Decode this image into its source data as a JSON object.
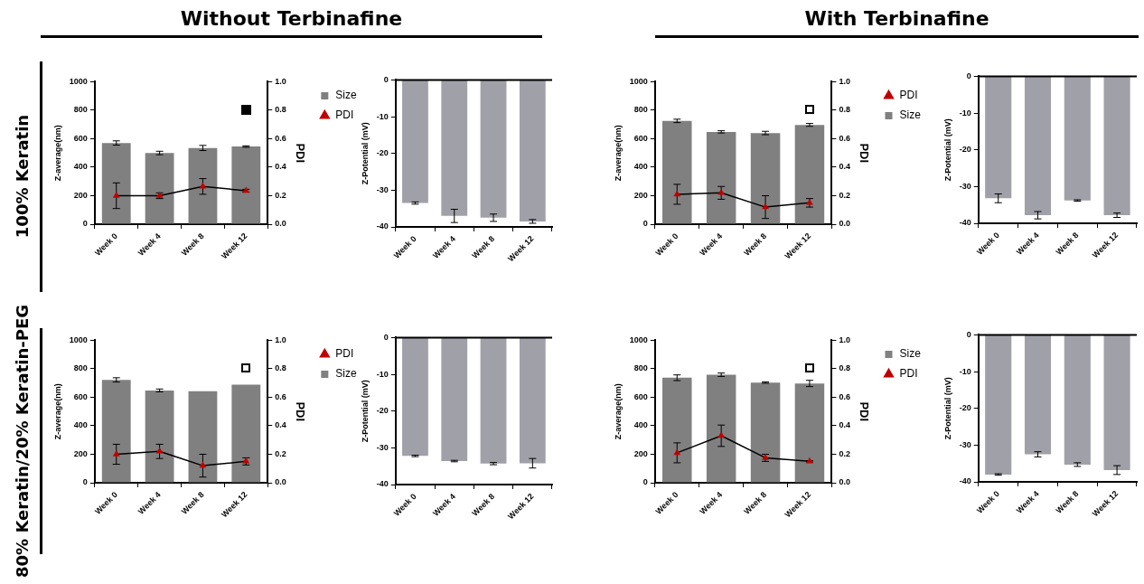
{
  "chart_data": [
    {
      "type": "other",
      "annotations": [
        "Without Terbinafine",
        "With Terbinafine",
        "100% Keratin",
        "80% Keratin/20% Keratin-PEG"
      ]
    },
    {
      "type": "bar",
      "categories": [
        "Week 0",
        "Week 4",
        "Week 8",
        "Week 12"
      ],
      "ylabel": "Z-average(nm)",
      "y2label": "PDI",
      "ylim": [
        0,
        1000
      ],
      "yticks": [
        0,
        200,
        400,
        600,
        800,
        1000
      ],
      "y2lim": [
        0,
        1
      ],
      "y2ticks": [
        {
          "value": 0,
          "label": "0.0"
        },
        {
          "value": 0.2,
          "label": "0.2"
        },
        {
          "value": 0.4,
          "label": "0.4"
        },
        {
          "value": 0.6,
          "label": "0.6"
        },
        {
          "value": 0.8,
          "label": "0.8"
        },
        {
          "value": 1,
          "label": "1.0"
        }
      ],
      "grid": false,
      "legend": "right",
      "marker": "triangle",
      "series": [
        {
          "name": "Size",
          "type": "bar",
          "color": "#808080",
          "values": [
            570,
            500,
            535,
            545
          ],
          "errors": [
            15,
            12,
            18,
            5
          ]
        },
        {
          "name": "PDI",
          "type": "line",
          "axis": "y2",
          "color": "#c00000",
          "values": [
            0.2,
            0.2,
            0.265,
            0.235
          ],
          "errors": [
            0.09,
            0.02,
            0.055,
            0.01
          ]
        }
      ]
    },
    {
      "type": "bar",
      "categories": [
        "Week 0",
        "Week 4",
        "Week 8",
        "Week 12"
      ],
      "ylabel": "Z-Potential (mV)",
      "ylim": [
        -40,
        0
      ],
      "yticks": [
        -40,
        -30,
        -20,
        -10,
        0
      ],
      "grid": false,
      "color": "#a0a0a8",
      "values": [
        -33.5,
        -37,
        -37.5,
        -38.5
      ],
      "errors": [
        0.3,
        1.8,
        1,
        0.5
      ]
    },
    {
      "type": "bar",
      "categories": [
        "Week 0",
        "Week 4",
        "Week 8",
        "Week 12"
      ],
      "ylabel": "Z-average(nm)",
      "y2label": "PDI",
      "ylim": [
        0,
        1000
      ],
      "yticks": [
        0,
        200,
        400,
        600,
        800,
        1000
      ],
      "y2lim": [
        0,
        1
      ],
      "y2ticks": [
        {
          "value": 0,
          "label": "0.0"
        },
        {
          "value": 0.2,
          "label": "0.2"
        },
        {
          "value": 0.4,
          "label": "0.4"
        },
        {
          "value": 0.6,
          "label": "0.6"
        },
        {
          "value": 0.8,
          "label": "0.8"
        },
        {
          "value": 1,
          "label": "1.0"
        }
      ],
      "grid": false,
      "legend": "right",
      "marker": "triangle",
      "series": [
        {
          "name": "PDI",
          "type": "line",
          "axis": "y2",
          "color": "#c00000",
          "values": [
            0.21,
            0.22,
            0.12,
            0.15
          ],
          "errors": [
            0.07,
            0.045,
            0.08,
            0.03
          ]
        },
        {
          "name": "Size",
          "type": "bar",
          "color": "#808080",
          "values": [
            725,
            648,
            640,
            697
          ],
          "errors": [
            12,
            8,
            12,
            10
          ]
        }
      ]
    },
    {
      "type": "bar",
      "categories": [
        "Week 0",
        "Week 4",
        "Week 8",
        "Week 12"
      ],
      "ylabel": "Z-Potential (mV)",
      "ylim": [
        -40,
        0
      ],
      "yticks": [
        -40,
        -30,
        -20,
        -10,
        0
      ],
      "grid": false,
      "color": "#a0a0a8",
      "values": [
        -33.2,
        -37.8,
        -33.8,
        -37.8
      ],
      "errors": [
        1.2,
        1,
        0.2,
        0.6
      ]
    },
    {
      "type": "bar",
      "categories": [
        "Week 0",
        "Week 4",
        "Week 8",
        "Week 12"
      ],
      "ylabel": "Z-average(nm)",
      "y2label": "PDI",
      "ylim": [
        0,
        1000
      ],
      "yticks": [
        0,
        200,
        400,
        600,
        800,
        1000
      ],
      "y2lim": [
        0,
        1
      ],
      "y2ticks": [
        {
          "value": 0,
          "label": "0.0"
        },
        {
          "value": 0.2,
          "label": "0.2"
        },
        {
          "value": 0.4,
          "label": "0.4"
        },
        {
          "value": 0.6,
          "label": "0.6"
        },
        {
          "value": 0.8,
          "label": "0.8"
        },
        {
          "value": 1,
          "label": "1.0"
        }
      ],
      "grid": false,
      "legend": "right",
      "marker": "triangle",
      "series": [
        {
          "name": "PDI",
          "type": "line",
          "axis": "y2",
          "color": "#c00000",
          "values": [
            0.2,
            0.22,
            0.12,
            0.15
          ],
          "errors": [
            0.07,
            0.05,
            0.08,
            0.025
          ]
        },
        {
          "name": "Size",
          "type": "bar",
          "color": "#808080",
          "values": [
            722,
            648,
            642,
            688
          ],
          "errors": [
            15,
            10,
            null,
            null
          ]
        }
      ]
    },
    {
      "type": "bar",
      "categories": [
        "Week 0",
        "Week 4",
        "Week 8",
        "Week 12"
      ],
      "ylabel": "Z-Potential (mV)",
      "ylim": [
        -40,
        0
      ],
      "yticks": [
        -40,
        -30,
        -20,
        -10,
        0
      ],
      "grid": false,
      "color": "#a0a0a8",
      "values": [
        -32.2,
        -33.6,
        -34.3,
        -34.2
      ],
      "errors": [
        0.2,
        0.2,
        0.3,
        1.3
      ]
    },
    {
      "type": "bar",
      "categories": [
        "Week 0",
        "Week 4",
        "Week 8",
        "Week 12"
      ],
      "ylabel": "Z-average(nm)",
      "y2label": "PDI",
      "ylim": [
        0,
        1000
      ],
      "yticks": [
        0,
        200,
        400,
        600,
        800,
        1000
      ],
      "y2lim": [
        0,
        1
      ],
      "y2ticks": [
        {
          "value": 0,
          "label": "0.0"
        },
        {
          "value": 0.2,
          "label": "0.2"
        },
        {
          "value": 0.4,
          "label": "0.4"
        },
        {
          "value": 0.6,
          "label": "0.6"
        },
        {
          "value": 0.8,
          "label": "0.8"
        },
        {
          "value": 1,
          "label": "1.0"
        }
      ],
      "grid": false,
      "legend": "right",
      "marker": "triangle",
      "series": [
        {
          "name": "Size",
          "type": "bar",
          "color": "#808080",
          "values": [
            737,
            758,
            703,
            697
          ],
          "errors": [
            20,
            12,
            5,
            22
          ]
        },
        {
          "name": "PDI",
          "type": "line",
          "axis": "y2",
          "color": "#c00000",
          "values": [
            0.21,
            0.33,
            0.175,
            0.15
          ],
          "errors": [
            0.07,
            0.075,
            0.025,
            0.005
          ]
        }
      ]
    },
    {
      "type": "bar",
      "categories": [
        "Week 0",
        "Week 4",
        "Week 8",
        "Week 12"
      ],
      "ylabel": "Z-Potential (mV)",
      "ylim": [
        -40,
        0
      ],
      "yticks": [
        -40,
        -30,
        -20,
        -10,
        0
      ],
      "grid": false,
      "color": "#a0a0a8",
      "values": [
        -38,
        -32.5,
        -35.3,
        -36.8
      ],
      "errors": [
        0.2,
        0.7,
        0.5,
        1.2
      ]
    }
  ]
}
